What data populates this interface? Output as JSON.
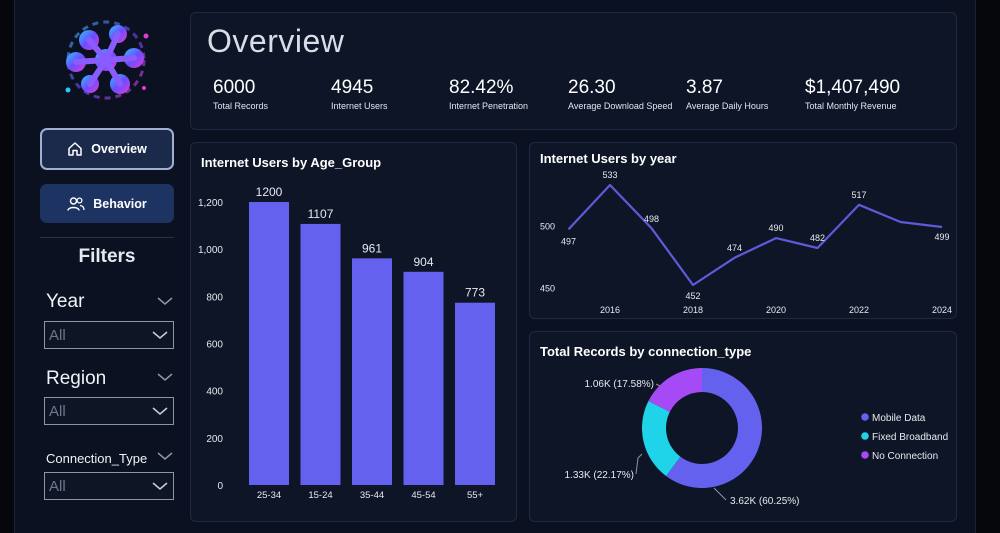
{
  "sidebar": {
    "nav": [
      {
        "label": "Overview",
        "icon": "home-icon",
        "active": true
      },
      {
        "label": "Behavior",
        "icon": "users-icon",
        "active": false
      }
    ],
    "filters_title": "Filters",
    "filters": [
      {
        "label": "Year",
        "value": "All"
      },
      {
        "label": "Region",
        "value": "All"
      },
      {
        "label": "Connection_Type",
        "value": "All"
      }
    ]
  },
  "overview": {
    "title": "Overview",
    "kpis": [
      {
        "value": "6000",
        "label": "Total Records"
      },
      {
        "value": "4945",
        "label": "Internet Users"
      },
      {
        "value": "82.42%",
        "label": "Internet Penetration"
      },
      {
        "value": "26.30",
        "label": "Average Download Speed"
      },
      {
        "value": "3.87",
        "label": "Average Daily Hours"
      },
      {
        "value": "$1,407,490",
        "label": "Total Monthly Revenue"
      }
    ]
  },
  "colors": {
    "bar": "#6461ee",
    "line": "#5d5bd9",
    "mobile_data": "#6461ee",
    "fixed_broadband": "#1fd3e9",
    "no_connection": "#a64af5"
  },
  "chart_data": [
    {
      "type": "bar",
      "title": "Internet Users by Age_Group",
      "categories": [
        "25-34",
        "15-24",
        "35-44",
        "45-54",
        "55+"
      ],
      "values": [
        1200,
        1107,
        961,
        904,
        773
      ],
      "data_labels": [
        "1200",
        "1107",
        "961",
        "904",
        "773"
      ],
      "ylim": [
        0,
        1250
      ],
      "yticks": [
        0,
        200,
        400,
        600,
        800,
        1000,
        1200
      ],
      "ytick_labels": [
        "0",
        "200",
        "400",
        "600",
        "800",
        "1,000",
        "1,200"
      ],
      "grid": false
    },
    {
      "type": "line",
      "title": "Internet Users by year",
      "x": [
        2015,
        2016,
        2017,
        2018,
        2019,
        2020,
        2021,
        2022,
        2023,
        2024
      ],
      "values": [
        497,
        533,
        498,
        452,
        474,
        490,
        482,
        517,
        503,
        499
      ],
      "data_labels": [
        "497",
        "533",
        "498",
        "452",
        "474",
        "490",
        "482",
        "517",
        "",
        "499"
      ],
      "xticks": [
        2016,
        2018,
        2020,
        2022,
        2024
      ],
      "xtick_labels": [
        "2016",
        "2018",
        "2020",
        "2022",
        "2024"
      ],
      "yticks": [
        450,
        500
      ],
      "ytick_labels": [
        "450",
        "500"
      ],
      "ylim": [
        442,
        540
      ],
      "grid": false
    },
    {
      "type": "pie",
      "title": "Total Records by connection_type",
      "donut": true,
      "labels": [
        "Mobile Data",
        "Fixed Broadband",
        "No Connection"
      ],
      "values": [
        3615,
        1330,
        1055
      ],
      "data_labels": [
        "3.62K (60.25%)",
        "1.33K (22.17%)",
        "1.06K (17.58%)"
      ],
      "legend_position": "right"
    }
  ]
}
